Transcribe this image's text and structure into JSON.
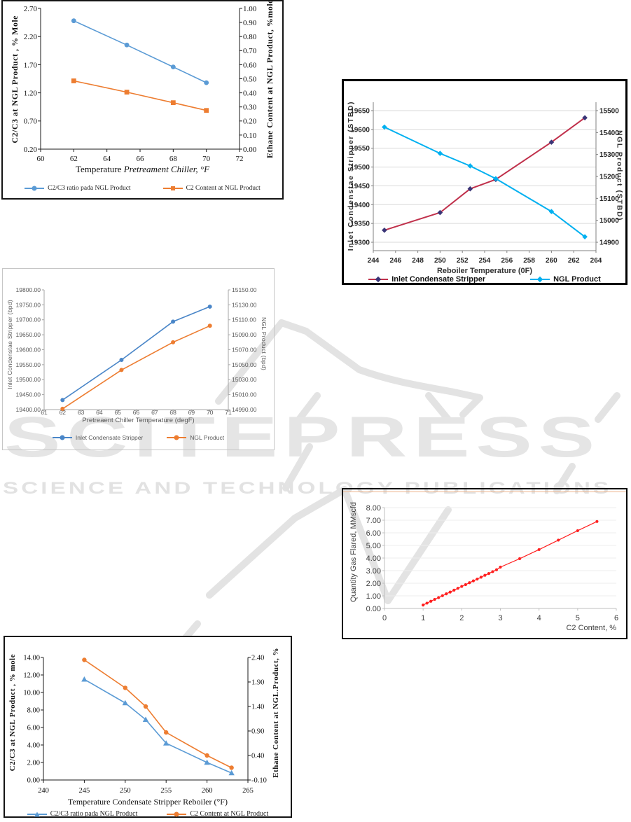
{
  "watermark": {
    "logo_text": "SCITEPRESS",
    "sub_text": "SCIENCE AND TECHNOLOGY PUBLICATIONS",
    "color": "#E5E5E5"
  },
  "chart_data": [
    {
      "type": "line",
      "title": "",
      "xlabel_prefix": "Temperature ",
      "xlabel_italic": "Pretreament Chiller, °F",
      "ylabel_left": "C2/C3 at NGL Product , % Mole",
      "ylabel_right": "Ethane Content at NGL Product, %mole",
      "x_ticks": [
        60,
        62,
        64,
        66,
        68,
        70,
        72
      ],
      "yleft_ticks": [
        "0.20",
        "0.70",
        "1.20",
        "1.70",
        "2.20",
        "2.70"
      ],
      "yright_ticks": [
        "0.00",
        "0.10",
        "0.20",
        "0.30",
        "0.40",
        "0.50",
        "0.60",
        "0.70",
        "0.80",
        "0.90",
        "1.00"
      ],
      "grid": false,
      "legend_position": "bottom",
      "series": [
        {
          "name": "C2/C3 ratio pada NGL Product",
          "axis": "left",
          "color": "#5B9BD5",
          "marker": "circle",
          "x": [
            62,
            65.2,
            68,
            70
          ],
          "y": [
            2.48,
            2.05,
            1.66,
            1.38
          ]
        },
        {
          "name": "C2 Content at NGL Product",
          "axis": "right",
          "color": "#ED7D31",
          "marker": "square",
          "x": [
            62,
            65.2,
            68,
            70
          ],
          "y": [
            0.485,
            0.405,
            0.33,
            0.275
          ]
        }
      ]
    },
    {
      "type": "line",
      "title": "",
      "xlabel": "Reboiler  Temperature (0F)",
      "ylabel_left": "Inlet Condenstae Stripper (STBD)",
      "ylabel_right": "NGL Product (STBD)",
      "x_ticks": [
        244,
        246,
        248,
        250,
        252,
        254,
        256,
        258,
        260,
        262,
        264
      ],
      "yleft_ticks": [
        "19300",
        "19350",
        "19400",
        "19450",
        "19500",
        "19550",
        "19600",
        "19650"
      ],
      "yright_ticks": [
        "14900",
        "15000",
        "15100",
        "15200",
        "15300",
        "15400",
        "15500"
      ],
      "grid": true,
      "legend_position": "bottom",
      "series": [
        {
          "name": "Inlet Condensate Stripper",
          "axis": "left",
          "color": "#C0304B",
          "marker": "diamond",
          "marker_color": "#3A3577",
          "x": [
            245,
            250,
            252.7,
            255,
            260,
            263
          ],
          "y": [
            19332,
            19379,
            19442,
            19467,
            19566,
            19631
          ]
        },
        {
          "name": "NGL Product",
          "axis": "right",
          "color": "#00B0F0",
          "marker": "diamond",
          "x": [
            245,
            250,
            252.7,
            255,
            260,
            263
          ],
          "y": [
            15425,
            15305,
            15248,
            15190,
            15040,
            14925
          ]
        }
      ]
    },
    {
      "type": "line",
      "title": "",
      "xlabel": "Pretreaent Chiller Temperature (degF)",
      "ylabel_left": "Inlet Condenstae Stripper (bpd)",
      "ylabel_right": "NGL Product (bpd)",
      "x_ticks": [
        61,
        62,
        63,
        64,
        65,
        66,
        67,
        68,
        69,
        70,
        71
      ],
      "yleft_ticks": [
        "19400.00",
        "19450.00",
        "19500.00",
        "19550.00",
        "19600.00",
        "19650.00",
        "19700.00",
        "19750.00",
        "19800.00"
      ],
      "yright_ticks": [
        "14990.00",
        "15010.00",
        "15030.00",
        "15050.00",
        "15070.00",
        "15090.00",
        "15110.00",
        "15130.00",
        "15150.00"
      ],
      "grid": false,
      "legend_position": "bottom",
      "series": [
        {
          "name": "Inlet Condensate Stripper",
          "axis": "left",
          "color": "#4A86C8",
          "marker": "circle",
          "x": [
            62,
            65.2,
            68,
            70
          ],
          "y": [
            19432,
            19566,
            19694,
            19744
          ]
        },
        {
          "name": "NGL Product",
          "axis": "right",
          "color": "#ED7D31",
          "marker": "circle",
          "x": [
            62,
            65.2,
            68,
            70
          ],
          "y": [
            14991,
            15043,
            15080,
            15102
          ]
        }
      ]
    },
    {
      "type": "line",
      "title": "",
      "xlabel": "C2 Content, %",
      "ylabel_left": "Quantity Gas Flared, MMscfd",
      "x_ticks": [
        0,
        1,
        2,
        3,
        4,
        5,
        6
      ],
      "yleft_ticks": [
        "0.00",
        "1.00",
        "2.00",
        "3.00",
        "4.00",
        "5.00",
        "6.00",
        "7.00",
        "8.00"
      ],
      "grid": true,
      "legend_position": "none",
      "series": [
        {
          "name": "Quantity Gas Flared",
          "axis": "left",
          "color": "#FF1F1F",
          "marker": "circle",
          "x": [
            1.0,
            1.1,
            1.2,
            1.3,
            1.4,
            1.5,
            1.6,
            1.7,
            1.8,
            1.9,
            2.0,
            2.1,
            2.2,
            2.3,
            2.4,
            2.5,
            2.6,
            2.7,
            2.8,
            2.9,
            3.0,
            3.5,
            4.0,
            4.5,
            5.0,
            5.5
          ],
          "y": [
            0.27,
            0.42,
            0.57,
            0.72,
            0.86,
            1.01,
            1.16,
            1.3,
            1.45,
            1.6,
            1.75,
            1.89,
            2.04,
            2.19,
            2.33,
            2.48,
            2.63,
            2.77,
            2.92,
            3.07,
            3.28,
            3.95,
            4.67,
            5.42,
            6.17,
            6.9
          ]
        }
      ]
    },
    {
      "type": "line",
      "title": "",
      "xlabel": "Temperature Condensate Stripper Reboiler  (°F)",
      "ylabel_left": "C2/C3 at NGL Product , % mole",
      "ylabel_right": "Ethane Content at NGL.Product, %",
      "x_ticks": [
        240,
        245,
        250,
        255,
        260,
        265
      ],
      "yleft_ticks": [
        "0.00",
        "2.00",
        "4.00",
        "6.00",
        "8.00",
        "10.00",
        "12.00",
        "14.00"
      ],
      "yright_ticks": [
        "-0.10",
        "0.40",
        "0.90",
        "1.40",
        "1.90",
        "2.40"
      ],
      "grid": false,
      "legend_position": "bottom",
      "series": [
        {
          "name": "C2/C3 ratio pada NGL Product",
          "axis": "left",
          "color": "#5B9BD5",
          "marker": "triangle",
          "x": [
            245,
            250,
            252.5,
            255,
            260,
            263
          ],
          "y": [
            11.5,
            8.8,
            6.9,
            4.2,
            2.0,
            0.8
          ]
        },
        {
          "name": "C2 Content at NGL Product",
          "axis": "right",
          "color": "#ED7D31",
          "marker": "circle",
          "x": [
            245,
            250,
            252.5,
            255,
            260,
            263
          ],
          "y": [
            2.35,
            1.78,
            1.4,
            0.87,
            0.4,
            0.15
          ]
        }
      ]
    }
  ]
}
